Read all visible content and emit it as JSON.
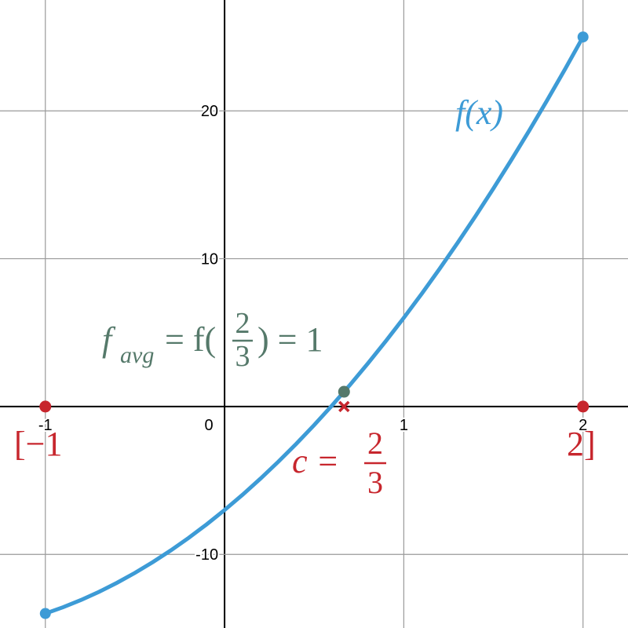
{
  "chart_data": {
    "type": "line",
    "x": [
      -1,
      -0.9,
      -0.8,
      -0.7,
      -0.6,
      -0.5,
      -0.4,
      -0.3,
      -0.2,
      -0.1,
      0,
      0.1,
      0.2,
      0.3,
      0.4,
      0.5,
      0.6,
      0.7,
      0.8,
      0.9,
      1,
      1.1,
      1.2,
      1.3,
      1.4,
      1.5,
      1.6,
      1.7,
      1.8,
      1.9,
      2
    ],
    "values": [
      -14,
      -13.57,
      -13.08,
      -12.53,
      -11.92,
      -11.25,
      -10.52,
      -9.73,
      -8.88,
      -7.97,
      -7,
      -5.97,
      -4.88,
      -3.73,
      -2.52,
      -1.25,
      0.08,
      1.47,
      2.92,
      4.43,
      6,
      7.63,
      9.32,
      11.07,
      12.88,
      14.75,
      16.68,
      18.67,
      20.72,
      22.83,
      25
    ],
    "color": "#3d9bd6",
    "curve_label": "f(x)",
    "points": [
      {
        "x": -1,
        "y": 0,
        "color": "#c7262d",
        "shape": "dot"
      },
      {
        "x": 2,
        "y": 0,
        "color": "#c7262d",
        "shape": "dot"
      },
      {
        "x": 0.6667,
        "y": 1,
        "color": "#55796a",
        "shape": "dot"
      },
      {
        "x": 0.6667,
        "y": 0,
        "color": "#c7262d",
        "shape": "cross"
      }
    ],
    "interval_left": "[−1",
    "interval_right": "2]",
    "c_label": {
      "lhs": "c =",
      "num": "2",
      "den": "3"
    },
    "favg_label": {
      "f": "f",
      "sub": "avg",
      "mid": "= f(",
      "num": "2",
      "den": "3",
      "rhs": ") = 1"
    },
    "xlim": [
      -1.253,
      2.251
    ],
    "ylim": [
      -14.98,
      27.5
    ],
    "xticks": [
      -1,
      0,
      1,
      2
    ],
    "yticks": [
      -10,
      10,
      20
    ],
    "grid": true
  }
}
